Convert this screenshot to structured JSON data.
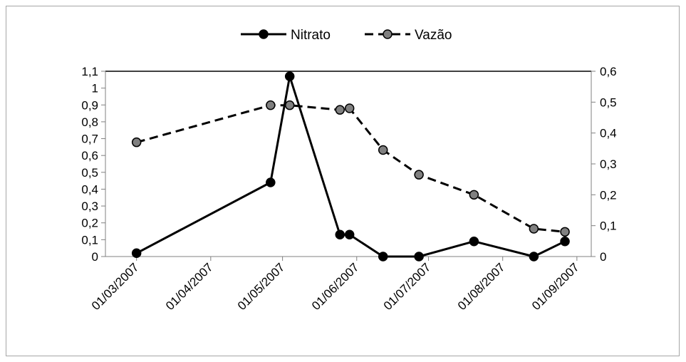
{
  "chart_data": {
    "type": "line",
    "x": [
      "2007-03-01",
      "2007-04-26",
      "2007-05-04",
      "2007-05-25",
      "2007-05-29",
      "2007-06-12",
      "2007-06-27",
      "2007-07-20",
      "2007-08-14",
      "2007-08-27"
    ],
    "x_tick_labels": [
      "01/03/2007",
      "01/04/2007",
      "01/05/2007",
      "01/06/2007",
      "01/07/2007",
      "01/08/2007",
      "01/09/2007"
    ],
    "y_left_tick_labels": [
      "0",
      "0,1",
      "0,2",
      "0,3",
      "0,4",
      "0,5",
      "0,6",
      "0,7",
      "0,8",
      "0,9",
      "1",
      "1,1"
    ],
    "y_right_tick_labels": [
      "0",
      "0,1",
      "0,2",
      "0,3",
      "0,4",
      "0,5",
      "0,6"
    ],
    "ylim_left": [
      0,
      1.1
    ],
    "ylim_right": [
      0,
      0.6
    ],
    "series": [
      {
        "name": "Nitrato",
        "axis": "left",
        "style": "solid",
        "color": "#000000",
        "points": [
          {
            "x": "2007-03-01",
            "y": 0.02
          },
          {
            "x": "2007-04-26",
            "y": 0.44
          },
          {
            "x": "2007-05-04",
            "y": 1.07
          },
          {
            "x": "2007-05-25",
            "y": 0.13
          },
          {
            "x": "2007-05-29",
            "y": 0.13
          },
          {
            "x": "2007-06-12",
            "y": 0.0
          },
          {
            "x": "2007-06-27",
            "y": 0.0
          },
          {
            "x": "2007-07-20",
            "y": 0.09
          },
          {
            "x": "2007-08-14",
            "y": 0.0
          },
          {
            "x": "2007-08-27",
            "y": 0.09
          }
        ]
      },
      {
        "name": "Vazão",
        "axis": "right",
        "style": "dashed",
        "color": "#000000",
        "marker_color": "#808080",
        "points": [
          {
            "x": "2007-03-01",
            "y": 0.37
          },
          {
            "x": "2007-04-26",
            "y": 0.49
          },
          {
            "x": "2007-05-04",
            "y": 0.49
          },
          {
            "x": "2007-05-25",
            "y": 0.475
          },
          {
            "x": "2007-05-29",
            "y": 0.48
          },
          {
            "x": "2007-06-12",
            "y": 0.345
          },
          {
            "x": "2007-06-27",
            "y": 0.265
          },
          {
            "x": "2007-07-20",
            "y": 0.2
          },
          {
            "x": "2007-08-14",
            "y": 0.09
          },
          {
            "x": "2007-08-27",
            "y": 0.08
          }
        ]
      }
    ],
    "legend_placement": "top-center",
    "grid": false
  }
}
